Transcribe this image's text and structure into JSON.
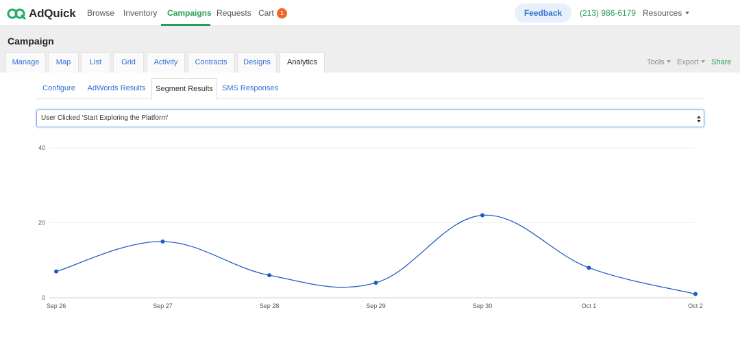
{
  "nav": {
    "brand": "AdQuick",
    "links": [
      "Browse",
      "Inventory",
      "Campaigns",
      "Requests",
      "Cart"
    ],
    "cart_count": "1",
    "feedback_label": "Feedback",
    "phone": "(213) 986-6179",
    "resources_label": "Resources"
  },
  "campaign": {
    "title": "Campaign",
    "tabs": [
      "Manage",
      "Map",
      "List",
      "Grid",
      "Activity",
      "Contracts",
      "Designs",
      "Analytics"
    ],
    "active_tab": "Analytics",
    "tools": [
      "Tools",
      "Export",
      "Share"
    ]
  },
  "analytics": {
    "subtabs": [
      "Configure",
      "AdWords Results",
      "Segment Results",
      "SMS Responses"
    ],
    "active_subtab": "Segment Results",
    "segment_select": "User Clicked 'Start Exploring the Platform'"
  },
  "colors": {
    "accent_green": "#2a9d55",
    "link_blue": "#2f6fd6",
    "series_blue": "#1f5bc4",
    "badge_orange": "#f26522"
  },
  "chart_data": {
    "type": "line",
    "title": "",
    "xlabel": "",
    "ylabel": "",
    "categories": [
      "Sep 26",
      "Sep 27",
      "Sep 28",
      "Sep 29",
      "Sep 30",
      "Oct 1",
      "Oct 2"
    ],
    "series": [
      {
        "values": [
          7,
          15,
          6,
          4,
          22,
          8,
          1
        ]
      }
    ],
    "yticks": [
      "0",
      "20",
      "40"
    ],
    "ylim": [
      0,
      40
    ],
    "grid": true,
    "legend": "none"
  }
}
